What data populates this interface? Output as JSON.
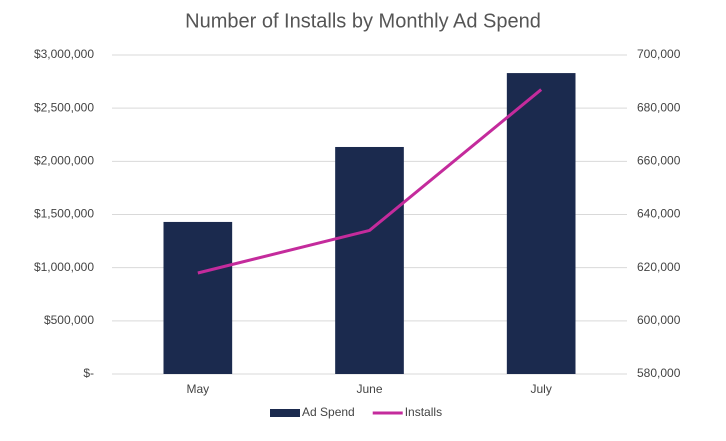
{
  "chart_data": {
    "type": "bar",
    "title": "Number of Installs by Monthly Ad Spend",
    "categories": [
      "May",
      "June",
      "July"
    ],
    "series": [
      {
        "name": "Ad Spend",
        "color": "#1b2a4e",
        "values": [
          1430000,
          2135000,
          2830000
        ]
      },
      {
        "name": "Installs",
        "color": "#c42b9c",
        "values": [
          618000,
          634000,
          687000
        ],
        "axis": "y2",
        "type": "line"
      }
    ],
    "ylim": [
      0,
      3000000
    ],
    "yticks": [
      {
        "value": 0,
        "label": "$-"
      },
      {
        "value": 500000,
        "label": "$500,000"
      },
      {
        "value": 1000000,
        "label": "$1,000,000"
      },
      {
        "value": 1500000,
        "label": "$1,500,000"
      },
      {
        "value": 2000000,
        "label": "$2,000,000"
      },
      {
        "value": 2500000,
        "label": "$2,500,000"
      },
      {
        "value": 3000000,
        "label": "$3,000,000"
      }
    ],
    "y2lim": [
      580000,
      700000
    ],
    "y2ticks": [
      {
        "value": 580000,
        "label": "580,000"
      },
      {
        "value": 600000,
        "label": "600,000"
      },
      {
        "value": 620000,
        "label": "620,000"
      },
      {
        "value": 640000,
        "label": "640,000"
      },
      {
        "value": 660000,
        "label": "660,000"
      },
      {
        "value": 680000,
        "label": "680,000"
      },
      {
        "value": 700000,
        "label": "700,000"
      }
    ],
    "grid": true,
    "legend": "bottom"
  }
}
